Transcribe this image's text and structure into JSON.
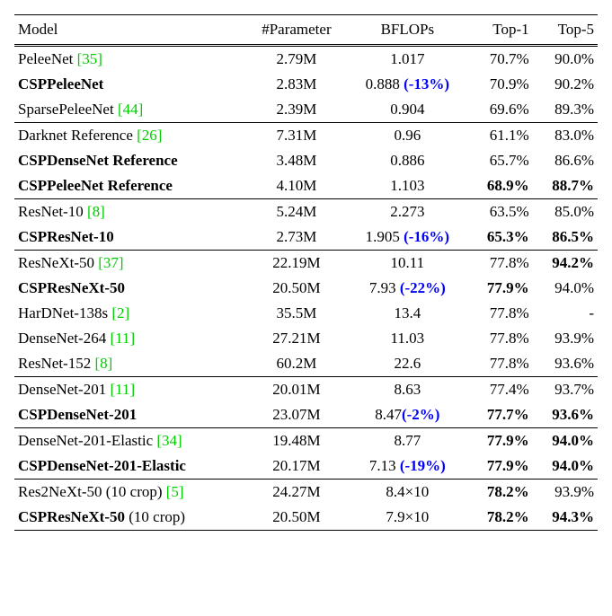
{
  "table": {
    "columns": [
      "Model",
      "#Parameter",
      "BFLOPs",
      "Top-1",
      "Top-5"
    ],
    "cite_color": "#00cc00",
    "delta_color": "#0000ff",
    "groups": [
      {
        "rows": [
          {
            "model": "PeleeNet ",
            "cite": "[35]",
            "bold": false,
            "param": "2.79M",
            "bflops": "1.017",
            "delta": "",
            "top1": "70.7%",
            "top1_bold": false,
            "top5": "90.0%",
            "top5_bold": false
          },
          {
            "model": "CSPPeleeNet",
            "cite": "",
            "bold": true,
            "param": "2.83M",
            "bflops": "0.888 ",
            "delta": "(-13%)",
            "top1": "70.9%",
            "top1_bold": false,
            "top5": "90.2%",
            "top5_bold": false
          },
          {
            "model": "SparsePeleeNet ",
            "cite": "[44]",
            "bold": false,
            "param": "2.39M",
            "bflops": "0.904",
            "delta": "",
            "top1": "69.6%",
            "top1_bold": false,
            "top5": "89.3%",
            "top5_bold": false
          }
        ]
      },
      {
        "rows": [
          {
            "model": "Darknet Reference ",
            "cite": "[26]",
            "bold": false,
            "param": "7.31M",
            "bflops": "0.96",
            "delta": "",
            "top1": "61.1%",
            "top1_bold": false,
            "top5": "83.0%",
            "top5_bold": false
          },
          {
            "model": "CSPDenseNet Reference",
            "cite": "",
            "bold": true,
            "param": "3.48M",
            "bflops": "0.886",
            "delta": "",
            "top1": "65.7%",
            "top1_bold": false,
            "top5": "86.6%",
            "top5_bold": false
          },
          {
            "model": "CSPPeleeNet Reference",
            "cite": "",
            "bold": true,
            "param": "4.10M",
            "bflops": "1.103",
            "delta": "",
            "top1": "68.9%",
            "top1_bold": true,
            "top5": "88.7%",
            "top5_bold": true
          }
        ]
      },
      {
        "rows": [
          {
            "model": "ResNet-10 ",
            "cite": "[8]",
            "bold": false,
            "param": "5.24M",
            "bflops": "2.273",
            "delta": "",
            "top1": "63.5%",
            "top1_bold": false,
            "top5": "85.0%",
            "top5_bold": false
          },
          {
            "model": "CSPResNet-10",
            "cite": "",
            "bold": true,
            "param": "2.73M",
            "bflops": "1.905 ",
            "delta": "(-16%)",
            "top1": "65.3%",
            "top1_bold": true,
            "top5": "86.5%",
            "top5_bold": true
          }
        ]
      },
      {
        "rows": [
          {
            "model": "ResNeXt-50 ",
            "cite": "[37]",
            "bold": false,
            "param": "22.19M",
            "bflops": "10.11",
            "delta": "",
            "top1": "77.8%",
            "top1_bold": false,
            "top5": "94.2%",
            "top5_bold": true
          },
          {
            "model": "CSPResNeXt-50",
            "cite": "",
            "bold": true,
            "param": "20.50M",
            "bflops": "7.93 ",
            "delta": "(-22%)",
            "top1": "77.9%",
            "top1_bold": true,
            "top5": "94.0%",
            "top5_bold": false
          },
          {
            "model": "HarDNet-138s ",
            "cite": "[2]",
            "bold": false,
            "param": "35.5M",
            "bflops": "13.4",
            "delta": "",
            "top1": "77.8%",
            "top1_bold": false,
            "top5": "-",
            "top5_bold": false
          },
          {
            "model": "DenseNet-264 ",
            "cite": "[11]",
            "bold": false,
            "param": "27.21M",
            "bflops": "11.03",
            "delta": "",
            "top1": "77.8%",
            "top1_bold": false,
            "top5": "93.9%",
            "top5_bold": false
          },
          {
            "model": "ResNet-152 ",
            "cite": "[8]",
            "bold": false,
            "param": "60.2M",
            "bflops": "22.6",
            "delta": "",
            "top1": "77.8%",
            "top1_bold": false,
            "top5": "93.6%",
            "top5_bold": false
          }
        ]
      },
      {
        "rows": [
          {
            "model": "DenseNet-201 ",
            "cite": "[11]",
            "bold": false,
            "param": "20.01M",
            "bflops": "8.63",
            "delta": "",
            "top1": "77.4%",
            "top1_bold": false,
            "top5": "93.7%",
            "top5_bold": false
          },
          {
            "model": "CSPDenseNet-201",
            "cite": "",
            "bold": true,
            "param": "23.07M",
            "bflops": "8.47",
            "delta": "(-2%)",
            "top1": "77.7%",
            "top1_bold": true,
            "top5": "93.6%",
            "top5_bold": true
          }
        ]
      },
      {
        "rows": [
          {
            "model": "DenseNet-201-Elastic ",
            "cite": "[34]",
            "bold": false,
            "param": "19.48M",
            "bflops": "8.77",
            "delta": "",
            "top1": "77.9%",
            "top1_bold": true,
            "top5": "94.0%",
            "top5_bold": true
          },
          {
            "model": "CSPDenseNet-201-Elastic",
            "cite": "",
            "bold": true,
            "param": "20.17M",
            "bflops": "7.13 ",
            "delta": "(-19%)",
            "top1": "77.9%",
            "top1_bold": true,
            "top5": "94.0%",
            "top5_bold": true
          }
        ]
      },
      {
        "rows": [
          {
            "model": "Res2NeXt-50 ",
            "suffix": "(10 crop) ",
            "cite": "[5]",
            "bold": false,
            "param": "24.27M",
            "bflops": "8.4×10",
            "delta": "",
            "top1": "78.2%",
            "top1_bold": true,
            "top5": "93.9%",
            "top5_bold": false
          },
          {
            "model": "CSPResNeXt-50 ",
            "suffix": "(10 crop)",
            "cite": "",
            "bold": true,
            "param": "20.50M",
            "bflops": "7.9×10",
            "delta": "",
            "top1": "78.2%",
            "top1_bold": true,
            "top5": "94.3%",
            "top5_bold": true
          }
        ]
      }
    ]
  },
  "watermark": ""
}
